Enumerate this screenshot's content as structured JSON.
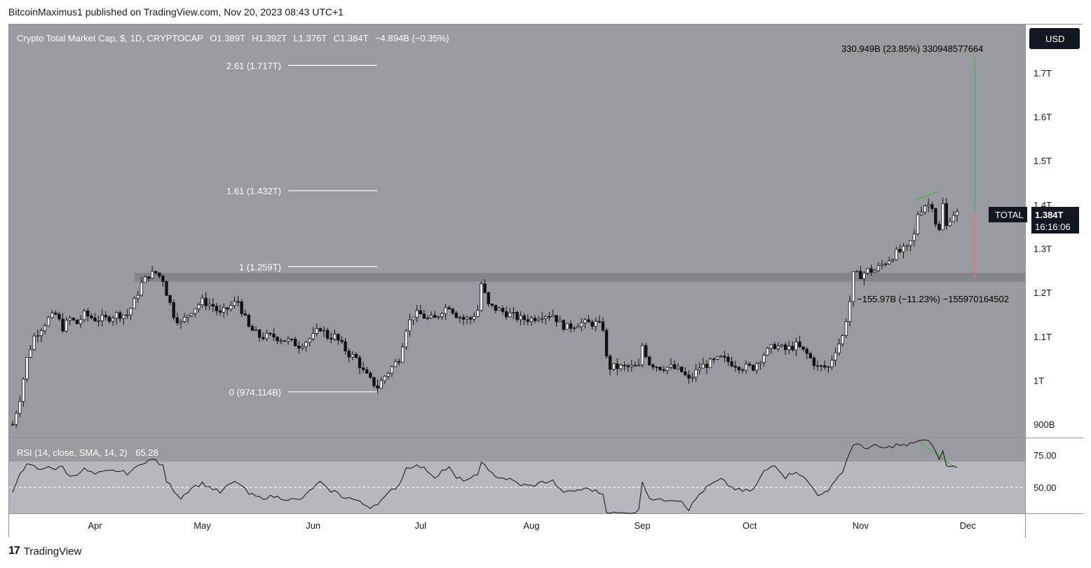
{
  "header": {
    "published": "BitcoinMaximus1 published on TradingView.com, Nov 20, 2023 08:43 UTC+1"
  },
  "legend": {
    "symbol": "Crypto Total Market Cap, $, 1D, CRYPTOCAP",
    "o_label": "O",
    "o_value": "1.389T",
    "h_label": "H",
    "h_value": "1.392T",
    "l_label": "L",
    "l_value": "1.376T",
    "c_label": "C",
    "c_value": "1.384T",
    "change": "−4.894B (−0.35%)"
  },
  "currency_button": "USD",
  "price_tag": {
    "name": "TOTAL",
    "value": "1.384T",
    "countdown": "16:16:06"
  },
  "measures": {
    "up": "330.949B (23.85%) 330948577664",
    "down": "−155.97B (−11.23%) −155970164502"
  },
  "rsi_legend": {
    "label": "RSI (14, close, SMA, 14, 2)",
    "value": "65.28"
  },
  "footer": {
    "brand": "TradingView",
    "logo_mark": "17"
  },
  "colors": {
    "pane_bg": "#999ba1",
    "rsi_band": "#b7b8bd",
    "up_candle": "#ffffff",
    "down_candle": "#111111",
    "support_zone": "#7f8187",
    "green_line": "#4caf50",
    "red_line": "#e57373"
  },
  "chart_data": {
    "type": "candlestick",
    "title": "Crypto Total Market Cap, $, 1D, CRYPTOCAP",
    "price_axis_ticks": [
      "1.7T",
      "1.6T",
      "1.5T",
      "1.4T",
      "1.3T",
      "1.2T",
      "1.1T",
      "1T",
      "900B"
    ],
    "price_axis_values": [
      1.7,
      1.6,
      1.5,
      1.4,
      1.3,
      1.2,
      1.1,
      1.0,
      0.9
    ],
    "price_ylim": [
      0.87,
      1.81
    ],
    "time_axis_ticks": [
      "Apr",
      "May",
      "Jun",
      "Jul",
      "Aug",
      "Sep",
      "Oct",
      "Nov",
      "Dec"
    ],
    "time_axis_days": [
      0,
      30,
      61,
      91,
      122,
      153,
      183,
      214,
      244
    ],
    "date_range": [
      "2023-03-08",
      "2023-12-15"
    ],
    "last_close": 1.384,
    "fib_levels": [
      {
        "label": "2.61 (1.717T)",
        "value": 1.717
      },
      {
        "label": "1.61 (1.432T)",
        "value": 1.432
      },
      {
        "label": "1 (1.259T)",
        "value": 1.259
      },
      {
        "label": "0 (974.114B)",
        "value": 0.974
      }
    ],
    "support_zone": [
      1.225,
      1.245
    ],
    "close_path": [
      {
        "d": -23,
        "c": 0.9
      },
      {
        "d": -21,
        "c": 0.96
      },
      {
        "d": -19,
        "c": 1.05
      },
      {
        "d": -17,
        "c": 1.1
      },
      {
        "d": -15,
        "c": 1.12
      },
      {
        "d": -13,
        "c": 1.14
      },
      {
        "d": -11,
        "c": 1.15
      },
      {
        "d": -9,
        "c": 1.12
      },
      {
        "d": -7,
        "c": 1.14
      },
      {
        "d": -5,
        "c": 1.13
      },
      {
        "d": -3,
        "c": 1.15
      },
      {
        "d": 0,
        "c": 1.14
      },
      {
        "d": 3,
        "c": 1.14
      },
      {
        "d": 6,
        "c": 1.15
      },
      {
        "d": 9,
        "c": 1.15
      },
      {
        "d": 11,
        "c": 1.18
      },
      {
        "d": 13,
        "c": 1.22
      },
      {
        "d": 15,
        "c": 1.24
      },
      {
        "d": 17,
        "c": 1.245
      },
      {
        "d": 19,
        "c": 1.23
      },
      {
        "d": 20,
        "c": 1.2
      },
      {
        "d": 22,
        "c": 1.15
      },
      {
        "d": 24,
        "c": 1.13
      },
      {
        "d": 27,
        "c": 1.16
      },
      {
        "d": 30,
        "c": 1.18
      },
      {
        "d": 33,
        "c": 1.17
      },
      {
        "d": 35,
        "c": 1.15
      },
      {
        "d": 38,
        "c": 1.17
      },
      {
        "d": 40,
        "c": 1.18
      },
      {
        "d": 43,
        "c": 1.12
      },
      {
        "d": 46,
        "c": 1.1
      },
      {
        "d": 50,
        "c": 1.1
      },
      {
        "d": 54,
        "c": 1.09
      },
      {
        "d": 57,
        "c": 1.08
      },
      {
        "d": 59,
        "c": 1.09
      },
      {
        "d": 61,
        "c": 1.1
      },
      {
        "d": 63,
        "c": 1.12
      },
      {
        "d": 65,
        "c": 1.1
      },
      {
        "d": 67,
        "c": 1.1
      },
      {
        "d": 69,
        "c": 1.08
      },
      {
        "d": 71,
        "c": 1.06
      },
      {
        "d": 73,
        "c": 1.05
      },
      {
        "d": 75,
        "c": 1.02
      },
      {
        "d": 77,
        "c": 1.0
      },
      {
        "d": 79,
        "c": 0.985
      },
      {
        "d": 81,
        "c": 1.01
      },
      {
        "d": 83,
        "c": 1.03
      },
      {
        "d": 85,
        "c": 1.05
      },
      {
        "d": 87,
        "c": 1.12
      },
      {
        "d": 89,
        "c": 1.15
      },
      {
        "d": 91,
        "c": 1.15
      },
      {
        "d": 93,
        "c": 1.14
      },
      {
        "d": 95,
        "c": 1.14
      },
      {
        "d": 97,
        "c": 1.16
      },
      {
        "d": 99,
        "c": 1.17
      },
      {
        "d": 101,
        "c": 1.15
      },
      {
        "d": 103,
        "c": 1.14
      },
      {
        "d": 105,
        "c": 1.14
      },
      {
        "d": 107,
        "c": 1.16
      },
      {
        "d": 108,
        "c": 1.22
      },
      {
        "d": 110,
        "c": 1.17
      },
      {
        "d": 113,
        "c": 1.16
      },
      {
        "d": 116,
        "c": 1.15
      },
      {
        "d": 119,
        "c": 1.14
      },
      {
        "d": 122,
        "c": 1.14
      },
      {
        "d": 125,
        "c": 1.15
      },
      {
        "d": 128,
        "c": 1.15
      },
      {
        "d": 130,
        "c": 1.13
      },
      {
        "d": 132,
        "c": 1.12
      },
      {
        "d": 135,
        "c": 1.13
      },
      {
        "d": 138,
        "c": 1.13
      },
      {
        "d": 140,
        "c": 1.13
      },
      {
        "d": 142,
        "c": 1.12
      },
      {
        "d": 143,
        "c": 1.05
      },
      {
        "d": 144,
        "c": 1.03
      },
      {
        "d": 146,
        "c": 1.03
      },
      {
        "d": 149,
        "c": 1.03
      },
      {
        "d": 152,
        "c": 1.03
      },
      {
        "d": 153,
        "c": 1.08
      },
      {
        "d": 155,
        "c": 1.04
      },
      {
        "d": 158,
        "c": 1.03
      },
      {
        "d": 161,
        "c": 1.03
      },
      {
        "d": 164,
        "c": 1.02
      },
      {
        "d": 166,
        "c": 1.0
      },
      {
        "d": 169,
        "c": 1.03
      },
      {
        "d": 172,
        "c": 1.04
      },
      {
        "d": 175,
        "c": 1.05
      },
      {
        "d": 178,
        "c": 1.04
      },
      {
        "d": 181,
        "c": 1.03
      },
      {
        "d": 184,
        "c": 1.03
      },
      {
        "d": 187,
        "c": 1.06
      },
      {
        "d": 190,
        "c": 1.08
      },
      {
        "d": 193,
        "c": 1.07
      },
      {
        "d": 196,
        "c": 1.08
      },
      {
        "d": 199,
        "c": 1.06
      },
      {
        "d": 202,
        "c": 1.03
      },
      {
        "d": 205,
        "c": 1.03
      },
      {
        "d": 207,
        "c": 1.07
      },
      {
        "d": 209,
        "c": 1.1
      },
      {
        "d": 211,
        "c": 1.18
      },
      {
        "d": 212,
        "c": 1.24
      },
      {
        "d": 214,
        "c": 1.24
      },
      {
        "d": 216,
        "c": 1.25
      },
      {
        "d": 218,
        "c": 1.25
      },
      {
        "d": 221,
        "c": 1.27
      },
      {
        "d": 224,
        "c": 1.29
      },
      {
        "d": 227,
        "c": 1.3
      },
      {
        "d": 229,
        "c": 1.33
      },
      {
        "d": 230,
        "c": 1.38
      },
      {
        "d": 232,
        "c": 1.4
      },
      {
        "d": 234,
        "c": 1.4
      },
      {
        "d": 235,
        "c": 1.36
      },
      {
        "d": 236,
        "c": 1.34
      },
      {
        "d": 237,
        "c": 1.4
      },
      {
        "d": 238,
        "c": 1.35
      },
      {
        "d": 239,
        "c": 1.37
      },
      {
        "d": 240,
        "c": 1.38
      },
      {
        "d": 241,
        "c": 1.384
      }
    ],
    "rsi": {
      "label": "RSI (14, close, SMA, 14, 2)",
      "last_value": 65.28,
      "axis_ticks": [
        "75.00",
        "50.00"
      ],
      "axis_values": [
        75,
        50
      ],
      "band": [
        30,
        70
      ],
      "ylim": [
        30,
        88
      ],
      "path": [
        {
          "d": -23,
          "v": 45
        },
        {
          "d": -21,
          "v": 62
        },
        {
          "d": -19,
          "v": 67
        },
        {
          "d": -17,
          "v": 66
        },
        {
          "d": -15,
          "v": 63
        },
        {
          "d": -13,
          "v": 67
        },
        {
          "d": -11,
          "v": 64
        },
        {
          "d": -9,
          "v": 66
        },
        {
          "d": -7,
          "v": 58
        },
        {
          "d": -5,
          "v": 61
        },
        {
          "d": -3,
          "v": 64
        },
        {
          "d": 0,
          "v": 60
        },
        {
          "d": 3,
          "v": 62
        },
        {
          "d": 6,
          "v": 63
        },
        {
          "d": 9,
          "v": 61
        },
        {
          "d": 11,
          "v": 64
        },
        {
          "d": 13,
          "v": 69
        },
        {
          "d": 15,
          "v": 71
        },
        {
          "d": 17,
          "v": 71
        },
        {
          "d": 19,
          "v": 66
        },
        {
          "d": 20,
          "v": 55
        },
        {
          "d": 22,
          "v": 48
        },
        {
          "d": 24,
          "v": 42
        },
        {
          "d": 27,
          "v": 50
        },
        {
          "d": 30,
          "v": 53
        },
        {
          "d": 33,
          "v": 49
        },
        {
          "d": 35,
          "v": 46
        },
        {
          "d": 38,
          "v": 53
        },
        {
          "d": 40,
          "v": 54
        },
        {
          "d": 43,
          "v": 45
        },
        {
          "d": 46,
          "v": 42
        },
        {
          "d": 50,
          "v": 43
        },
        {
          "d": 54,
          "v": 41
        },
        {
          "d": 57,
          "v": 40
        },
        {
          "d": 59,
          "v": 44
        },
        {
          "d": 61,
          "v": 50
        },
        {
          "d": 63,
          "v": 54
        },
        {
          "d": 65,
          "v": 48
        },
        {
          "d": 67,
          "v": 47
        },
        {
          "d": 69,
          "v": 43
        },
        {
          "d": 71,
          "v": 42
        },
        {
          "d": 73,
          "v": 40
        },
        {
          "d": 75,
          "v": 37
        },
        {
          "d": 77,
          "v": 35
        },
        {
          "d": 79,
          "v": 38
        },
        {
          "d": 81,
          "v": 42
        },
        {
          "d": 83,
          "v": 48
        },
        {
          "d": 85,
          "v": 52
        },
        {
          "d": 87,
          "v": 65
        },
        {
          "d": 89,
          "v": 67
        },
        {
          "d": 91,
          "v": 66
        },
        {
          "d": 93,
          "v": 63
        },
        {
          "d": 95,
          "v": 58
        },
        {
          "d": 97,
          "v": 63
        },
        {
          "d": 99,
          "v": 65
        },
        {
          "d": 101,
          "v": 57
        },
        {
          "d": 103,
          "v": 56
        },
        {
          "d": 105,
          "v": 56
        },
        {
          "d": 107,
          "v": 60
        },
        {
          "d": 108,
          "v": 71
        },
        {
          "d": 110,
          "v": 62
        },
        {
          "d": 113,
          "v": 58
        },
        {
          "d": 116,
          "v": 56
        },
        {
          "d": 119,
          "v": 52
        },
        {
          "d": 122,
          "v": 51
        },
        {
          "d": 125,
          "v": 54
        },
        {
          "d": 128,
          "v": 55
        },
        {
          "d": 130,
          "v": 48
        },
        {
          "d": 132,
          "v": 46
        },
        {
          "d": 135,
          "v": 48
        },
        {
          "d": 138,
          "v": 49
        },
        {
          "d": 140,
          "v": 47
        },
        {
          "d": 142,
          "v": 45
        },
        {
          "d": 143,
          "v": 32
        },
        {
          "d": 144,
          "v": 30
        },
        {
          "d": 146,
          "v": 30
        },
        {
          "d": 149,
          "v": 30
        },
        {
          "d": 152,
          "v": 32
        },
        {
          "d": 153,
          "v": 55
        },
        {
          "d": 155,
          "v": 42
        },
        {
          "d": 158,
          "v": 40
        },
        {
          "d": 161,
          "v": 41
        },
        {
          "d": 164,
          "v": 40
        },
        {
          "d": 166,
          "v": 33
        },
        {
          "d": 169,
          "v": 45
        },
        {
          "d": 172,
          "v": 52
        },
        {
          "d": 175,
          "v": 56
        },
        {
          "d": 178,
          "v": 50
        },
        {
          "d": 181,
          "v": 47
        },
        {
          "d": 184,
          "v": 48
        },
        {
          "d": 187,
          "v": 62
        },
        {
          "d": 190,
          "v": 68
        },
        {
          "d": 193,
          "v": 58
        },
        {
          "d": 196,
          "v": 63
        },
        {
          "d": 199,
          "v": 55
        },
        {
          "d": 202,
          "v": 45
        },
        {
          "d": 205,
          "v": 46
        },
        {
          "d": 207,
          "v": 57
        },
        {
          "d": 209,
          "v": 62
        },
        {
          "d": 211,
          "v": 78
        },
        {
          "d": 212,
          "v": 82
        },
        {
          "d": 214,
          "v": 83
        },
        {
          "d": 216,
          "v": 80
        },
        {
          "d": 218,
          "v": 82
        },
        {
          "d": 221,
          "v": 80
        },
        {
          "d": 224,
          "v": 83
        },
        {
          "d": 227,
          "v": 82
        },
        {
          "d": 229,
          "v": 85
        },
        {
          "d": 230,
          "v": 86
        },
        {
          "d": 232,
          "v": 86
        },
        {
          "d": 234,
          "v": 84
        },
        {
          "d": 235,
          "v": 77
        },
        {
          "d": 236,
          "v": 72
        },
        {
          "d": 237,
          "v": 78
        },
        {
          "d": 238,
          "v": 66
        },
        {
          "d": 239,
          "v": 67
        },
        {
          "d": 240,
          "v": 66
        },
        {
          "d": 241,
          "v": 65.28
        }
      ]
    }
  }
}
